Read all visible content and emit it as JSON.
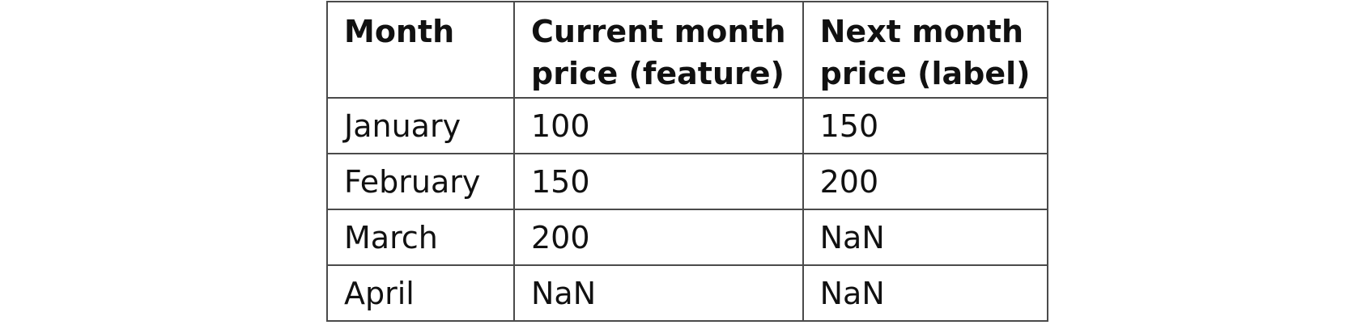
{
  "table": {
    "headers": [
      [
        "Month"
      ],
      [
        "Current month",
        "price (feature)"
      ],
      [
        "Next month",
        "price (label)"
      ]
    ],
    "rows": [
      [
        "January",
        "100",
        "150"
      ],
      [
        "February",
        "150",
        "200"
      ],
      [
        "March",
        "200",
        "NaN"
      ],
      [
        "April",
        "NaN",
        "NaN"
      ]
    ]
  }
}
